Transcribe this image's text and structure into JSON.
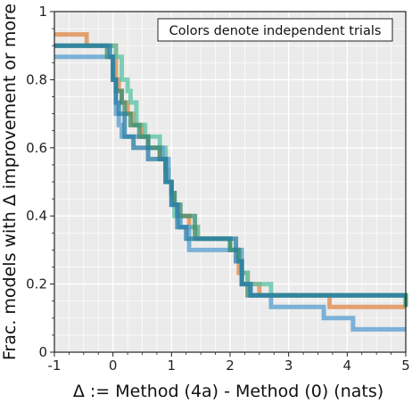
{
  "chart_data": {
    "type": "line",
    "step": true,
    "xlabel": "Δ := Method (4a) - Method (0) (nats)",
    "ylabel": "Frac. models with Δ improvement or more",
    "annotation": "Colors denote independent trials",
    "xlim": [
      -1,
      5
    ],
    "ylim": [
      0,
      1
    ],
    "xticks": [
      "-1",
      "0",
      "1",
      "2",
      "3",
      "4",
      "5"
    ],
    "yticks": [
      "0",
      "0.2",
      "0.4",
      "0.6",
      "0.8",
      "1"
    ],
    "grid": true,
    "background": "#ebebeb",
    "gridColor": "#ffffff",
    "series": [
      {
        "color": "#e08a4c",
        "x": [
          -1,
          -0.5,
          -0.45,
          0.05,
          0.1,
          0.15,
          0.25,
          0.35,
          0.5,
          0.6,
          0.8,
          0.9,
          0.95,
          1.0,
          1.05,
          1.1,
          1.3,
          1.45,
          2.0,
          2.15,
          2.3,
          2.5,
          3.6,
          3.7,
          5
        ],
        "y": [
          0.933,
          0.933,
          0.9,
          0.8,
          0.767,
          0.733,
          0.7,
          0.667,
          0.633,
          0.6,
          0.567,
          0.533,
          0.5,
          0.467,
          0.433,
          0.4,
          0.367,
          0.333,
          0.3,
          0.233,
          0.2,
          0.167,
          0.167,
          0.133,
          0.133
        ]
      },
      {
        "color": "#5cc4a6",
        "x": [
          -1,
          -0.6,
          0.05,
          0.15,
          0.25,
          0.3,
          0.4,
          0.55,
          0.8,
          0.9,
          0.95,
          1.0,
          1.05,
          1.15,
          1.35,
          1.45,
          2.0,
          2.15,
          2.2,
          2.3,
          2.6,
          2.7,
          5
        ],
        "y": [
          0.9,
          0.9,
          0.867,
          0.8,
          0.767,
          0.733,
          0.667,
          0.633,
          0.6,
          0.533,
          0.5,
          0.467,
          0.4,
          0.367,
          0.367,
          0.333,
          0.3,
          0.267,
          0.233,
          0.2,
          0.2,
          0.167,
          0.133
        ]
      },
      {
        "color": "#5ba0d0",
        "x": [
          -1,
          -0.5,
          0.0,
          0.05,
          0.1,
          0.15,
          0.25,
          0.4,
          0.6,
          0.85,
          0.95,
          1.0,
          1.1,
          1.15,
          1.3,
          2.05,
          2.2,
          2.35,
          2.5,
          2.7,
          3.6,
          4.1,
          5
        ],
        "y": [
          0.867,
          0.867,
          0.8,
          0.7,
          0.667,
          0.633,
          0.633,
          0.633,
          0.6,
          0.567,
          0.5,
          0.433,
          0.4,
          0.367,
          0.3,
          0.3,
          0.2,
          0.167,
          0.167,
          0.133,
          0.1,
          0.067,
          0.067
        ]
      },
      {
        "color": "#3d8f6e",
        "x": [
          -1,
          -0.1,
          0.0,
          0.05,
          0.15,
          0.2,
          0.3,
          0.45,
          0.6,
          0.8,
          0.9,
          1.0,
          1.05,
          1.15,
          1.4,
          2.0,
          2.15,
          2.2,
          2.3,
          2.5,
          2.6,
          5
        ],
        "y": [
          0.9,
          0.867,
          0.8,
          0.767,
          0.733,
          0.7,
          0.667,
          0.633,
          0.6,
          0.567,
          0.5,
          0.467,
          0.433,
          0.4,
          0.333,
          0.3,
          0.267,
          0.2,
          0.167,
          0.167,
          0.167,
          0.133
        ]
      },
      {
        "color": "#2c7fa8",
        "x": [
          -1,
          -0.05,
          0.0,
          0.05,
          0.1,
          0.2,
          0.35,
          0.6,
          0.9,
          1.0,
          1.1,
          1.25,
          2.1,
          2.2,
          2.35,
          5
        ],
        "y": [
          0.9,
          0.867,
          0.8,
          0.733,
          0.7,
          0.633,
          0.6,
          0.567,
          0.5,
          0.433,
          0.367,
          0.333,
          0.267,
          0.2,
          0.167,
          0.167
        ]
      }
    ]
  }
}
